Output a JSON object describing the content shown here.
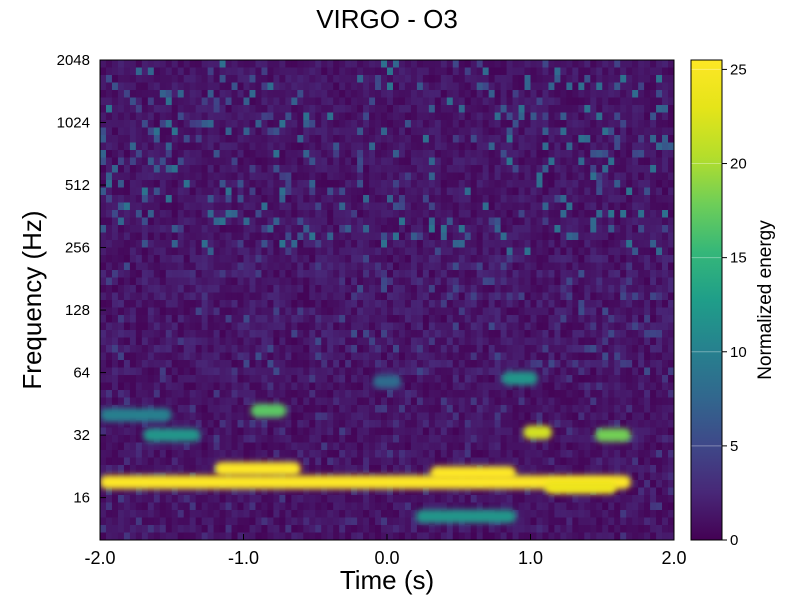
{
  "chart_data": {
    "type": "heatmap",
    "title": "VIRGO - O3",
    "xlabel": "Time (s)",
    "ylabel": "Frequency (Hz)",
    "xlim": [
      -2.0,
      2.0
    ],
    "ylim": [
      10,
      2048
    ],
    "yscale": "log2",
    "x_ticks": [
      {
        "value": -2.0,
        "label": "-2.0"
      },
      {
        "value": -1.0,
        "label": "-1.0"
      },
      {
        "value": 0.0,
        "label": "0.0"
      },
      {
        "value": 1.0,
        "label": "1.0"
      },
      {
        "value": 2.0,
        "label": "2.0"
      }
    ],
    "y_ticks": [
      {
        "value": 16,
        "label": "16"
      },
      {
        "value": 32,
        "label": "32"
      },
      {
        "value": 64,
        "label": "64"
      },
      {
        "value": 128,
        "label": "128"
      },
      {
        "value": 256,
        "label": "256"
      },
      {
        "value": 512,
        "label": "512"
      },
      {
        "value": 1024,
        "label": "1024"
      },
      {
        "value": 2048,
        "label": "2048"
      }
    ],
    "colorbar": {
      "label": "Normalized energy",
      "range": [
        0,
        25.5
      ],
      "colormap": "viridis",
      "ticks": [
        {
          "value": 0,
          "label": "0"
        },
        {
          "value": 5,
          "label": "5"
        },
        {
          "value": 10,
          "label": "10"
        },
        {
          "value": 15,
          "label": "15"
        },
        {
          "value": 20,
          "label": "20"
        },
        {
          "value": 25,
          "label": "25"
        }
      ]
    },
    "features": [
      {
        "t0": -2.0,
        "t1": 1.7,
        "f": 19,
        "energy": 25.5
      },
      {
        "t0": -1.2,
        "t1": -0.6,
        "f": 22,
        "energy": 25.5
      },
      {
        "t0": 0.3,
        "t1": 0.9,
        "f": 21,
        "energy": 25.5
      },
      {
        "t0": 1.1,
        "t1": 1.6,
        "f": 18,
        "energy": 24
      },
      {
        "t0": 0.95,
        "t1": 1.15,
        "f": 33,
        "energy": 22
      },
      {
        "t0": 1.45,
        "t1": 1.7,
        "f": 32,
        "energy": 18
      },
      {
        "t0": -0.95,
        "t1": -0.7,
        "f": 42,
        "energy": 17
      },
      {
        "t0": 0.8,
        "t1": 1.05,
        "f": 60,
        "energy": 12
      },
      {
        "t0": -1.7,
        "t1": -1.3,
        "f": 32,
        "energy": 12
      },
      {
        "t0": -2.0,
        "t1": -1.5,
        "f": 40,
        "energy": 10
      },
      {
        "t0": 0.2,
        "t1": 0.9,
        "f": 13,
        "energy": 12
      },
      {
        "t0": -0.1,
        "t1": 0.1,
        "f": 58,
        "energy": 8
      }
    ]
  }
}
